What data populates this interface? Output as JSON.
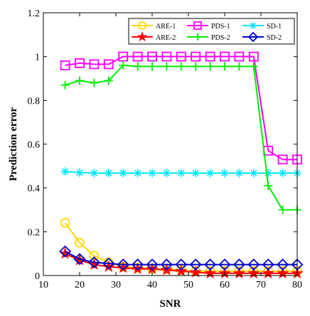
{
  "chart_data": {
    "type": "line",
    "xlabel": "SNR",
    "ylabel": "Prediction error",
    "xlim": [
      10,
      80
    ],
    "ylim": [
      0,
      1.2
    ],
    "xticks": [
      10,
      20,
      30,
      40,
      50,
      60,
      70,
      80
    ],
    "yticks": [
      0,
      0.2,
      0.4,
      0.6,
      0.8,
      1,
      1.2
    ],
    "xtick_labels": [
      "10",
      "20",
      "30",
      "40",
      "50",
      "60",
      "70",
      "80"
    ],
    "ytick_labels": [
      "0",
      "0.2",
      "0.4",
      "0.6",
      "0.8",
      "1",
      "1.2"
    ],
    "grid": false,
    "legend_position": "top-right",
    "x": [
      16,
      20,
      24,
      28,
      32,
      36,
      40,
      44,
      48,
      52,
      56,
      60,
      64,
      68,
      72,
      76,
      80
    ],
    "series": [
      {
        "name": "ARE-1",
        "color": "#ffd700",
        "marker": "circle",
        "values": [
          0.24,
          0.15,
          0.09,
          0.06,
          0.04,
          0.035,
          0.03,
          0.03,
          0.025,
          0.02,
          0.02,
          0.02,
          0.02,
          0.02,
          0.02,
          0.02,
          0.02
        ]
      },
      {
        "name": "PDS-1",
        "color": "#ff00ff",
        "marker": "square",
        "values": [
          0.96,
          0.97,
          0.965,
          0.965,
          1.0,
          1.0,
          1.0,
          1.0,
          1.0,
          1.0,
          1.0,
          1.0,
          1.0,
          1.0,
          0.57,
          0.53,
          0.53
        ]
      },
      {
        "name": "SD-1",
        "color": "#00e5ff",
        "marker": "asterisk",
        "values": [
          0.475,
          0.47,
          0.468,
          0.468,
          0.468,
          0.468,
          0.468,
          0.468,
          0.468,
          0.468,
          0.468,
          0.468,
          0.468,
          0.468,
          0.468,
          0.468,
          0.468
        ]
      },
      {
        "name": "ARE-2",
        "color": "#ff0000",
        "marker": "star",
        "values": [
          0.1,
          0.07,
          0.05,
          0.04,
          0.035,
          0.03,
          0.03,
          0.025,
          0.02,
          0.015,
          0.01,
          0.01,
          0.01,
          0.01,
          0.01,
          0.01,
          0.01
        ]
      },
      {
        "name": "PDS-2",
        "color": "#00ee00",
        "marker": "plus",
        "values": [
          0.87,
          0.89,
          0.88,
          0.89,
          0.96,
          0.955,
          0.955,
          0.955,
          0.955,
          0.955,
          0.955,
          0.955,
          0.955,
          0.955,
          0.41,
          0.3,
          0.3
        ]
      },
      {
        "name": "SD-2",
        "color": "#0000cc",
        "marker": "diamond",
        "values": [
          0.11,
          0.075,
          0.06,
          0.055,
          0.05,
          0.05,
          0.05,
          0.05,
          0.05,
          0.05,
          0.05,
          0.05,
          0.05,
          0.05,
          0.05,
          0.05,
          0.05
        ]
      }
    ]
  }
}
